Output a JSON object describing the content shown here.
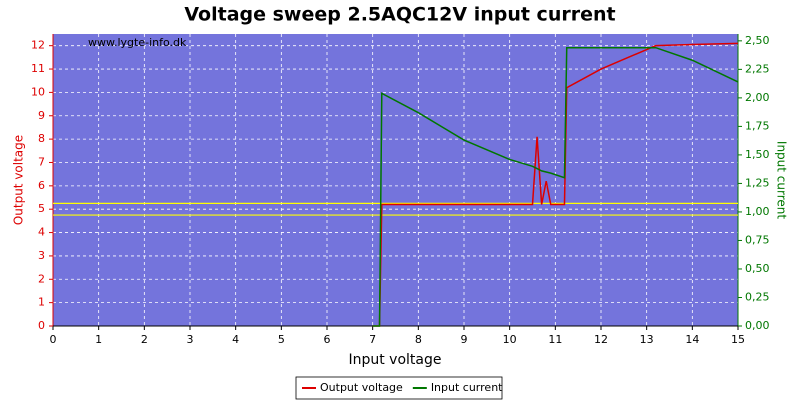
{
  "chart_data": {
    "type": "line",
    "title": "Voltage sweep 2.5AQC12V input current",
    "annotation": "www.lygte-info.dk",
    "x_label": "Input voltage",
    "y_label": "Output voltage",
    "y2_label": "Input current",
    "x": [
      7.0,
      7.15,
      7.2,
      8,
      9,
      10,
      10.5,
      10.6,
      10.7,
      10.8,
      10.9,
      11.2,
      11.25,
      12,
      13.2,
      14,
      15
    ],
    "series": [
      {
        "name": "Output voltage",
        "color": "#dd0000",
        "axis": "y",
        "values": [
          0,
          0,
          5.2,
          5.2,
          5.2,
          5.2,
          5.2,
          8.1,
          5.2,
          6.2,
          5.2,
          5.2,
          10.2,
          11.0,
          12.0,
          12.05,
          12.1
        ]
      },
      {
        "name": "Input current",
        "color": "#007700",
        "axis": "y2",
        "values": [
          0,
          0,
          2.04,
          1.87,
          1.63,
          1.46,
          1.4,
          1.38,
          1.36,
          1.35,
          1.34,
          1.3,
          2.44,
          2.44,
          2.44,
          2.33,
          2.14
        ]
      }
    ],
    "reference_lines": {
      "axis": "y",
      "color": "#ffff00",
      "values": [
        4.75,
        5.25
      ]
    },
    "xlim": [
      0,
      15
    ],
    "xticks": [
      0,
      1,
      2,
      3,
      4,
      5,
      6,
      7,
      8,
      9,
      10,
      11,
      12,
      13,
      14,
      15
    ],
    "ylim": [
      0,
      12.5
    ],
    "yticks": [
      0,
      1,
      2,
      3,
      4,
      5,
      6,
      7,
      8,
      9,
      10,
      11,
      12
    ],
    "y2lim": [
      0,
      2.56
    ],
    "y2ticks": [
      {
        "value": 0,
        "label": "0,00"
      },
      {
        "value": 0.25,
        "label": "0,25"
      },
      {
        "value": 0.5,
        "label": "0,50"
      },
      {
        "value": 0.75,
        "label": "0,75"
      },
      {
        "value": 1,
        "label": "1,00"
      },
      {
        "value": 1.25,
        "label": "1,25"
      },
      {
        "value": 1.5,
        "label": "1,50"
      },
      {
        "value": 1.75,
        "label": "1,75"
      },
      {
        "value": 2,
        "label": "2,00"
      },
      {
        "value": 2.25,
        "label": "2,25"
      },
      {
        "value": 2.5,
        "label": "2,50"
      }
    ],
    "grid": true,
    "legend": "bottom"
  }
}
